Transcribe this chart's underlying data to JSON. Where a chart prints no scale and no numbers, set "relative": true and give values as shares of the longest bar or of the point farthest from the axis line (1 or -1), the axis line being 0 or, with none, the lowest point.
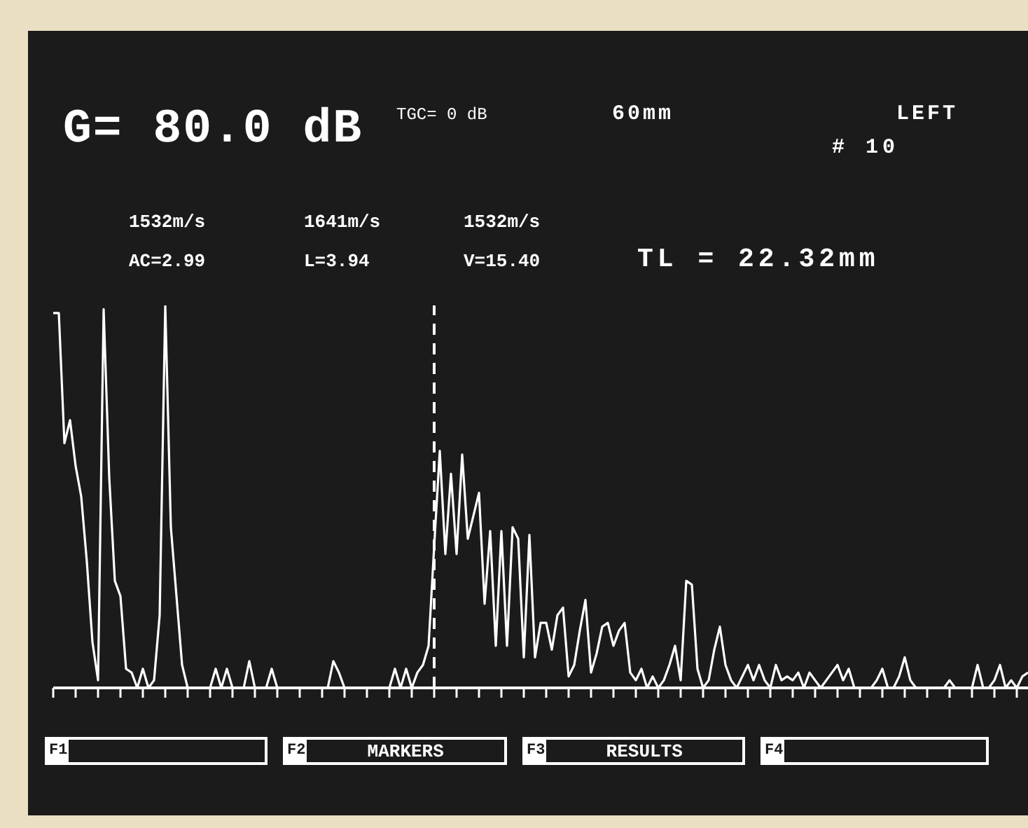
{
  "chart_data": {
    "type": "line",
    "relative": true,
    "color": "#ffffff",
    "marker": "none",
    "line_style": "solid",
    "grid": false,
    "legend": false,
    "categories": [
      null,
      null,
      null,
      null,
      null,
      null,
      null,
      null,
      null,
      null,
      null,
      null,
      null,
      null,
      null,
      null,
      null,
      null,
      null,
      null,
      null,
      null,
      null,
      null,
      null,
      null,
      null,
      null,
      null,
      null,
      null,
      null,
      null,
      null,
      null,
      null,
      null,
      null,
      null,
      null,
      null,
      null,
      null,
      null,
      null,
      null,
      null,
      null,
      null,
      null,
      null,
      null,
      null,
      null,
      null,
      null,
      null,
      null,
      null,
      null,
      null,
      null,
      null,
      null,
      null,
      null,
      null,
      null,
      null,
      null,
      null,
      null,
      null,
      null,
      null,
      null,
      null,
      null,
      null,
      null,
      null,
      null,
      null,
      null,
      null,
      null,
      null,
      null,
      null,
      null,
      null,
      null,
      null,
      null,
      null,
      null,
      null,
      null,
      null,
      null,
      null,
      null,
      null,
      null,
      null,
      null,
      null,
      null,
      null,
      null,
      null,
      null,
      null,
      null,
      null,
      null,
      null,
      null,
      null,
      null,
      null,
      null,
      null,
      null,
      null,
      null,
      null,
      null,
      null,
      null,
      null,
      null,
      null,
      null,
      null,
      null,
      null,
      null,
      null,
      null,
      null,
      null,
      null,
      null,
      null,
      null,
      null,
      null,
      null,
      null,
      null,
      null,
      null,
      null,
      null,
      null,
      null,
      null,
      null,
      null,
      null,
      null,
      null,
      null,
      null,
      null,
      null,
      null,
      null,
      null,
      null,
      null,
      null,
      null,
      null
    ],
    "values": [
      0.98,
      0.98,
      0.64,
      0.7,
      0.58,
      0.5,
      0.33,
      0.12,
      0.02,
      0.99,
      0.55,
      0.28,
      0.24,
      0.05,
      0.04,
      0,
      0.05,
      0,
      0.02,
      0.19,
      1,
      0.42,
      0.24,
      0.06,
      0,
      0,
      0,
      0,
      0,
      0.05,
      0,
      0.05,
      0,
      0,
      0,
      0.07,
      0,
      0,
      0,
      0.05,
      0,
      0,
      0,
      0,
      0,
      0,
      0,
      0,
      0,
      0,
      0.07,
      0.04,
      0,
      0,
      0,
      0,
      0,
      0,
      0,
      0,
      0,
      0.05,
      0,
      0.05,
      0,
      0.04,
      0.06,
      0.11,
      0.37,
      0.62,
      0.35,
      0.56,
      0.35,
      0.61,
      0.39,
      0.45,
      0.51,
      0.22,
      0.41,
      0.11,
      0.41,
      0.11,
      0.42,
      0.39,
      0.08,
      0.4,
      0.08,
      0.17,
      0.17,
      0.1,
      0.19,
      0.21,
      0.03,
      0.06,
      0.15,
      0.23,
      0.04,
      0.09,
      0.16,
      0.17,
      0.11,
      0.15,
      0.17,
      0.04,
      0.02,
      0.05,
      0,
      0.03,
      0,
      0.02,
      0.06,
      0.11,
      0.02,
      0.28,
      0.27,
      0.05,
      0,
      0.02,
      0.1,
      0.16,
      0.06,
      0.02,
      0,
      0.03,
      0.06,
      0.02,
      0.06,
      0.02,
      0,
      0.06,
      0.02,
      0.03,
      0.02,
      0.04,
      0,
      0.04,
      0.02,
      0,
      0.02,
      0.04,
      0.06,
      0.02,
      0.05,
      0,
      0,
      0,
      0,
      0.02,
      0.05,
      0,
      0,
      0.03,
      0.08,
      0.02,
      0,
      0,
      0,
      0,
      0,
      0,
      0.02,
      0,
      0,
      0,
      0,
      0.06,
      0,
      0,
      0.02,
      0.06,
      0,
      0.02,
      0,
      0.03,
      0.04
    ],
    "annotations": [
      "G= 80.0 dB",
      "TGC= 0 dB",
      "60mm",
      "LEFT",
      "# 10",
      "1532m/s",
      "1641m/s",
      "1532m/s",
      "AC=2.99",
      "L=3.94",
      "V=15.40",
      "TL = 22.32mm",
      "F1",
      "MARKERS",
      "F2",
      "RESULTS",
      "F3",
      "F4"
    ]
  }
}
